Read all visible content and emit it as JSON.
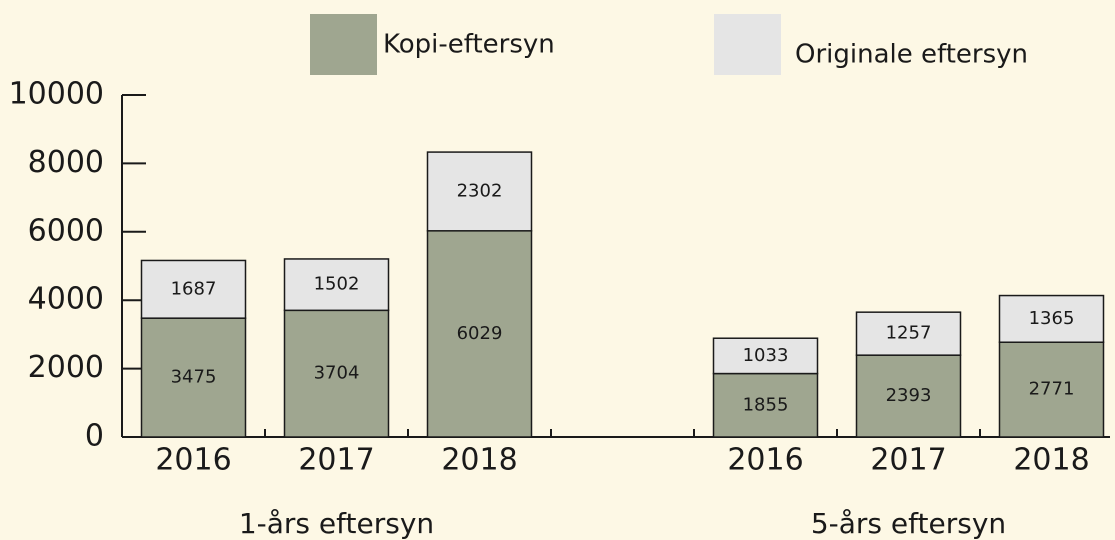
{
  "chart_data": {
    "type": "bar",
    "stacked": true,
    "categories": [
      "2016",
      "2017",
      "2018",
      null,
      "2016",
      "2017",
      "2018"
    ],
    "group_labels": [
      "1-års eftersyn",
      "5-års eftersyn"
    ],
    "series": [
      {
        "name": "Kopi-eftersyn",
        "color": "#9fa690",
        "values": [
          3475,
          3704,
          6029,
          null,
          1855,
          2393,
          2771
        ]
      },
      {
        "name": "Originale eftersyn",
        "color": "#e5e5e5",
        "values": [
          1687,
          1502,
          2302,
          null,
          1033,
          1257,
          1365
        ]
      }
    ],
    "ylim": [
      0,
      10000
    ],
    "yticks": [
      0,
      2000,
      4000,
      6000,
      8000,
      10000
    ]
  }
}
